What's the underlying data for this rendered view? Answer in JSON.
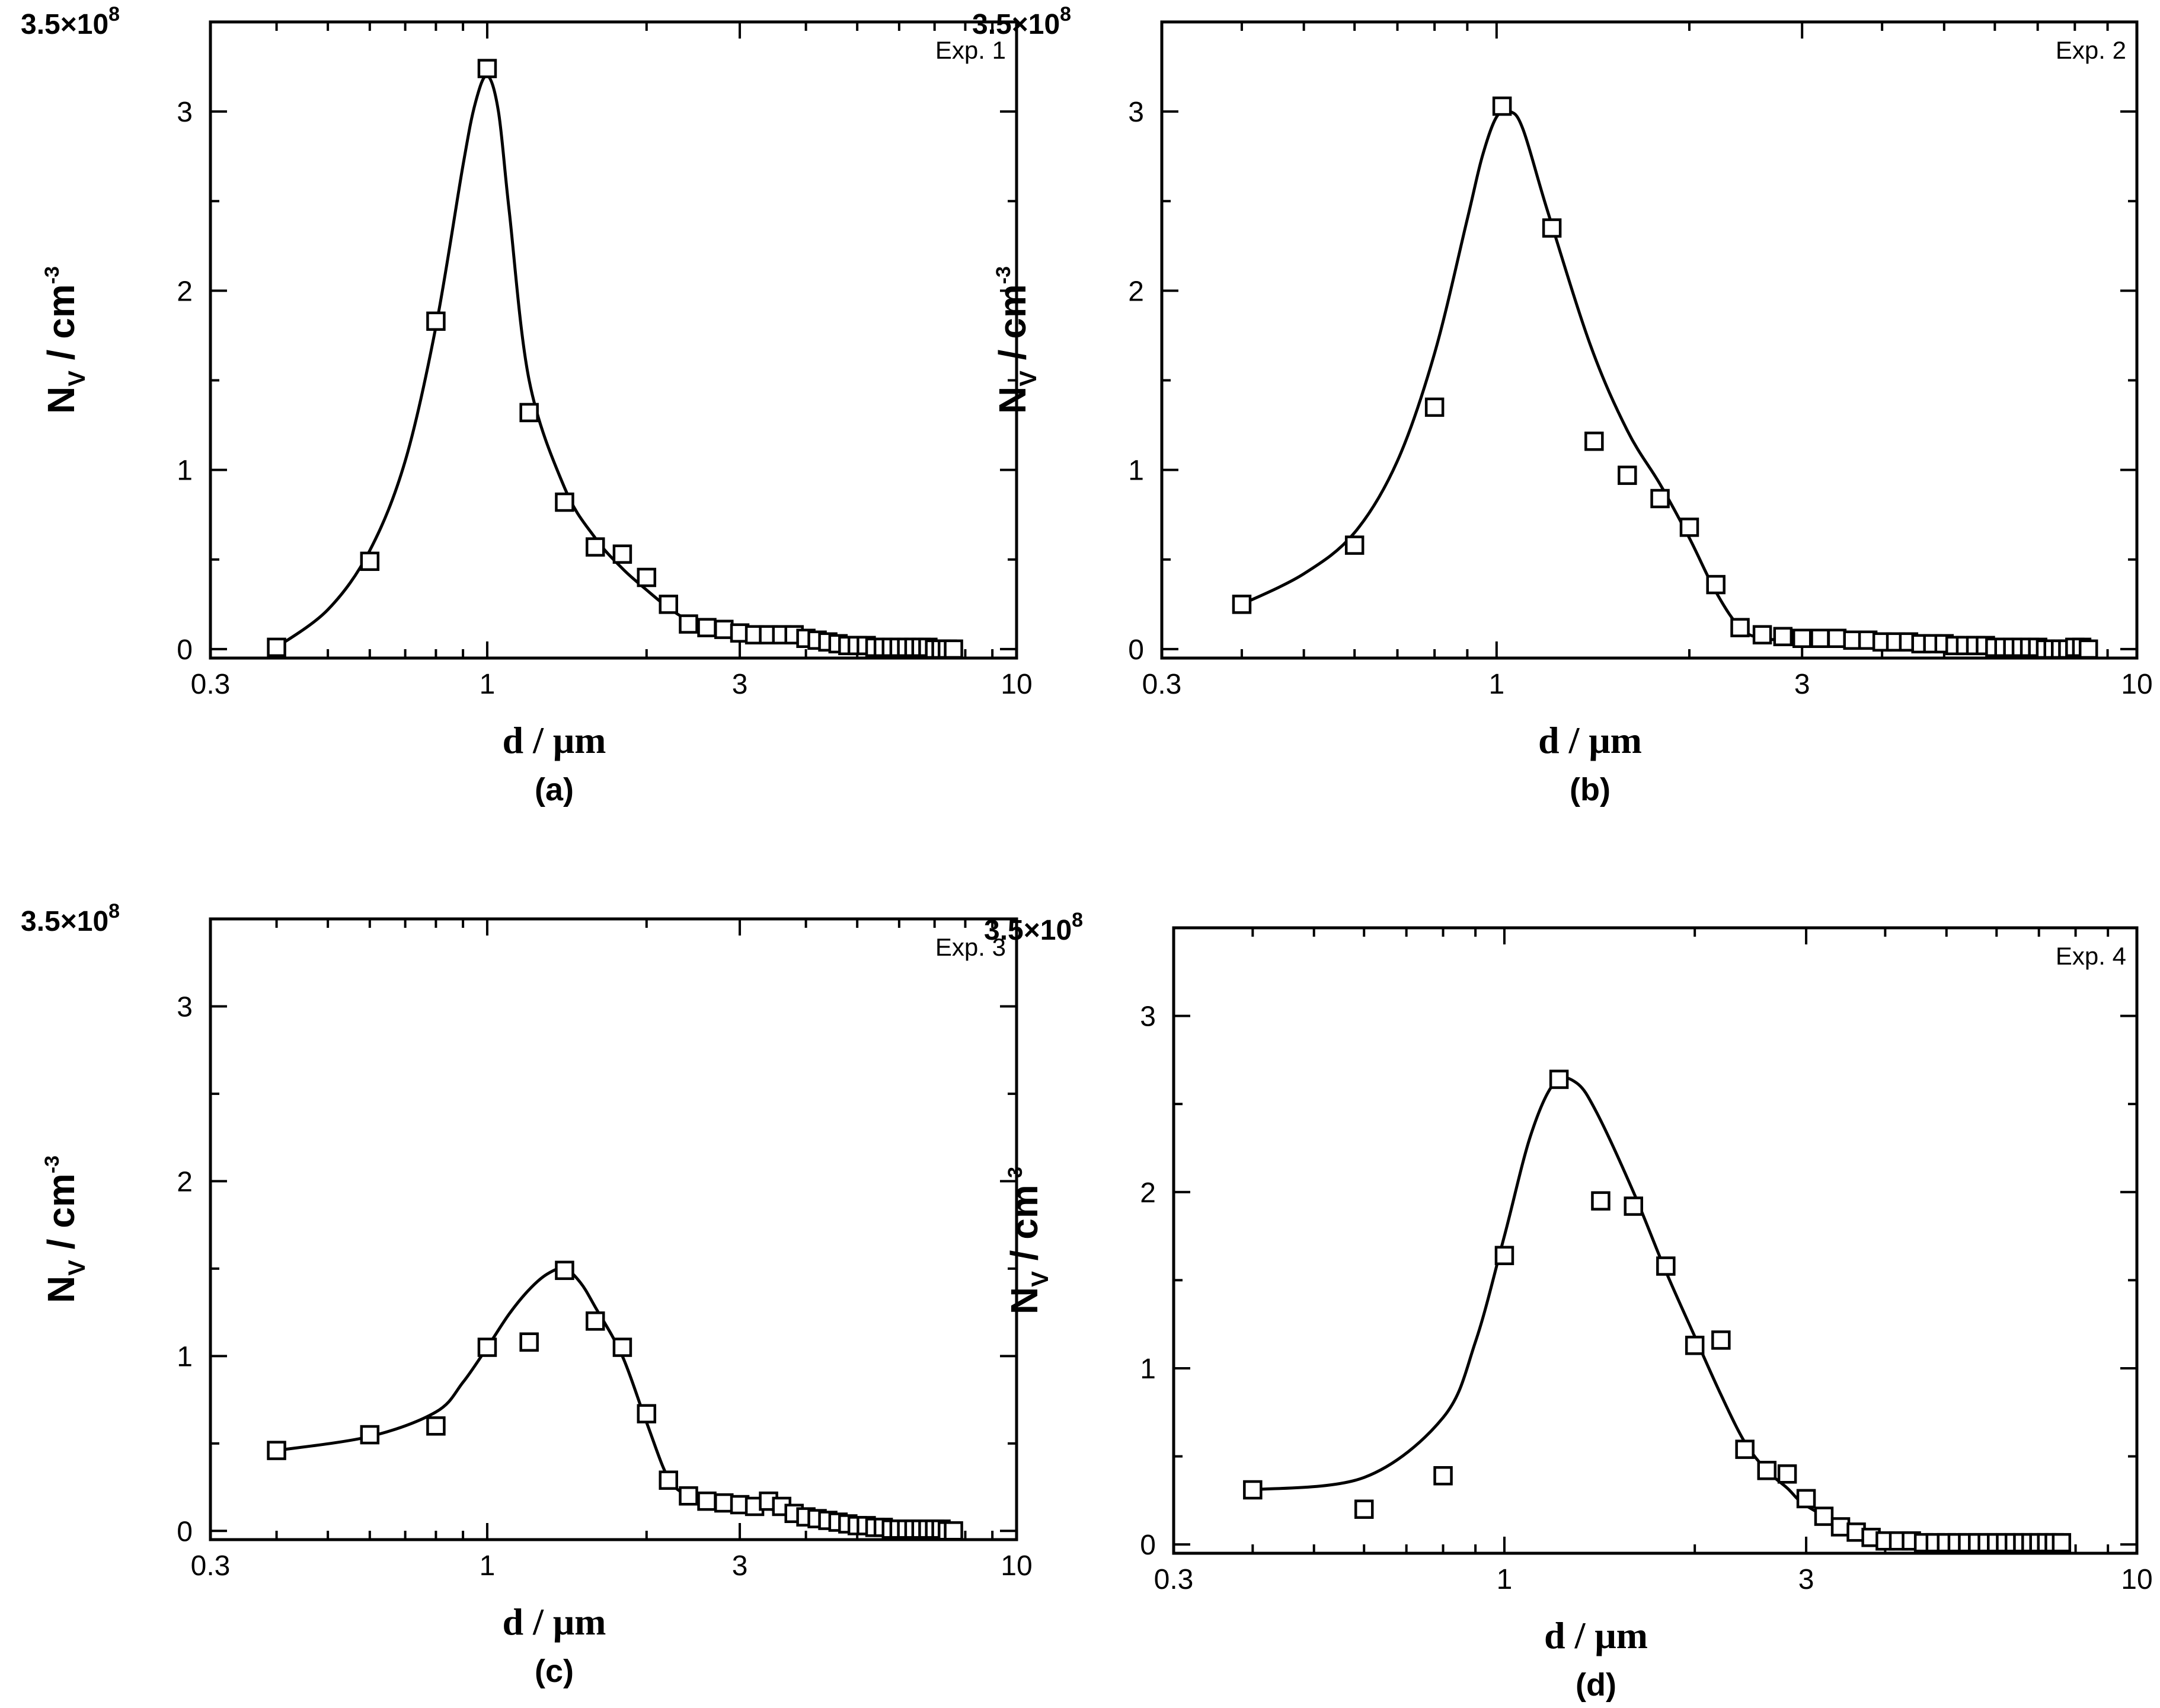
{
  "chart_data": [
    {
      "type": "scatter",
      "panel_label": "(a)",
      "annotation": "Exp. 1",
      "xlabel": "d / μm",
      "ylabel_main": "N",
      "ylabel_sub": "V",
      "ylabel_unit": " / cm",
      "ylabel_sup": "-3",
      "xscale": "log",
      "xlim": [
        0.3,
        10
      ],
      "ylim": [
        -0.05,
        3.5
      ],
      "ytop_label_base": "3.5×10",
      "ytop_label_exp": "8",
      "xticks": [
        0.3,
        1,
        3,
        10
      ],
      "xtick_labels": [
        "0.3",
        "1",
        "3",
        "10"
      ],
      "yticks": [
        0,
        1,
        2,
        3
      ],
      "ytick_labels": [
        "0",
        "1",
        "2",
        "3"
      ],
      "y_unit_note": "×10^8 cm^-3",
      "series": [
        {
          "name": "measured",
          "marker": "square",
          "x": [
            0.4,
            0.6,
            0.8,
            1.0,
            1.2,
            1.4,
            1.6,
            1.8,
            2.0,
            2.2,
            2.4,
            2.6,
            2.8,
            3.0,
            3.2,
            3.4,
            3.6,
            3.8,
            4.0,
            4.2,
            4.4,
            4.6,
            4.8,
            5.0,
            5.2,
            5.4,
            5.6,
            5.8,
            6.0,
            6.2,
            6.4,
            6.6,
            6.8,
            7.0,
            7.2,
            7.4,
            7.6
          ],
          "y": [
            0.01,
            0.49,
            1.83,
            3.24,
            1.32,
            0.82,
            0.57,
            0.53,
            0.4,
            0.25,
            0.14,
            0.12,
            0.11,
            0.09,
            0.08,
            0.08,
            0.08,
            0.08,
            0.06,
            0.05,
            0.04,
            0.03,
            0.02,
            0.02,
            0.02,
            0.01,
            0.01,
            0.01,
            0.01,
            0.01,
            0.01,
            0.01,
            0.01,
            0.0,
            0.0,
            0.0,
            0.0
          ]
        },
        {
          "name": "fit",
          "style": "line",
          "x": [
            0.4,
            0.5,
            0.6,
            0.7,
            0.8,
            0.9,
            0.95,
            1.0,
            1.05,
            1.1,
            1.2,
            1.4,
            1.6,
            1.8,
            2.0,
            2.2,
            2.4,
            2.6,
            3.0,
            3.5,
            4.0,
            4.5,
            5.0,
            6.0,
            7.6
          ],
          "y": [
            0.01,
            0.22,
            0.55,
            1.05,
            1.8,
            2.7,
            3.05,
            3.2,
            3.0,
            2.45,
            1.5,
            0.9,
            0.62,
            0.45,
            0.33,
            0.23,
            0.16,
            0.12,
            0.1,
            0.08,
            0.06,
            0.04,
            0.02,
            0.01,
            0.0
          ]
        }
      ]
    },
    {
      "type": "scatter",
      "panel_label": "(b)",
      "annotation": "Exp. 2",
      "xlabel": "d / μm",
      "ylabel_main": "N",
      "ylabel_sub": "V",
      "ylabel_unit": " / cm",
      "ylabel_sup": "-3",
      "xscale": "log",
      "xlim": [
        0.3,
        10
      ],
      "ylim": [
        -0.05,
        3.5
      ],
      "ytop_label_base": "3.5×10",
      "ytop_label_exp": "8",
      "xticks": [
        0.3,
        1,
        3,
        10
      ],
      "xtick_labels": [
        "0.3",
        "1",
        "3",
        "10"
      ],
      "yticks": [
        0,
        1,
        2,
        3
      ],
      "ytick_labels": [
        "0",
        "1",
        "2",
        "3"
      ],
      "series": [
        {
          "name": "measured",
          "marker": "square",
          "x": [
            0.4,
            0.6,
            0.8,
            1.02,
            1.22,
            1.42,
            1.6,
            1.8,
            2.0,
            2.2,
            2.4,
            2.6,
            2.8,
            3.0,
            3.2,
            3.4,
            3.6,
            3.8,
            4.0,
            4.2,
            4.4,
            4.6,
            4.8,
            5.0,
            5.2,
            5.4,
            5.6,
            5.8,
            6.0,
            6.2,
            6.4,
            6.6,
            6.8,
            7.0,
            7.2,
            7.4,
            7.6,
            7.8,
            8.0,
            8.2,
            8.4
          ],
          "y": [
            0.25,
            0.58,
            1.35,
            3.03,
            2.35,
            1.16,
            0.97,
            0.84,
            0.68,
            0.36,
            0.12,
            0.08,
            0.07,
            0.06,
            0.06,
            0.06,
            0.05,
            0.05,
            0.04,
            0.04,
            0.04,
            0.03,
            0.03,
            0.03,
            0.02,
            0.02,
            0.02,
            0.02,
            0.01,
            0.01,
            0.01,
            0.01,
            0.01,
            0.01,
            0.0,
            0.0,
            0.0,
            0.0,
            0.01,
            0.01,
            0.0
          ]
        },
        {
          "name": "fit",
          "style": "line",
          "x": [
            0.4,
            0.5,
            0.6,
            0.7,
            0.8,
            0.9,
            0.95,
            1.0,
            1.05,
            1.1,
            1.2,
            1.4,
            1.6,
            1.8,
            2.0,
            2.2,
            2.4,
            2.6,
            3.0,
            4.0,
            5.0,
            6.0,
            7.0,
            8.4
          ],
          "y": [
            0.25,
            0.42,
            0.65,
            1.05,
            1.65,
            2.4,
            2.75,
            2.97,
            3.0,
            2.9,
            2.45,
            1.7,
            1.22,
            0.92,
            0.62,
            0.32,
            0.12,
            0.06,
            0.05,
            0.03,
            0.02,
            0.01,
            0.0,
            0.0
          ]
        }
      ]
    },
    {
      "type": "scatter",
      "panel_label": "(c)",
      "annotation": "Exp. 3",
      "xlabel": "d / μm",
      "ylabel_main": "N",
      "ylabel_sub": "V",
      "ylabel_unit": " / cm",
      "ylabel_sup": "-3",
      "xscale": "log",
      "xlim": [
        0.3,
        10
      ],
      "ylim": [
        -0.05,
        3.5
      ],
      "ytop_label_base": "3.5×10",
      "ytop_label_exp": "8",
      "xticks": [
        0.3,
        1,
        3,
        10
      ],
      "xtick_labels": [
        "0.3",
        "1",
        "3",
        "10"
      ],
      "yticks": [
        0,
        1,
        2,
        3
      ],
      "ytick_labels": [
        "0",
        "1",
        "2",
        "3"
      ],
      "series": [
        {
          "name": "measured",
          "marker": "square",
          "x": [
            0.4,
            0.6,
            0.8,
            1.0,
            1.2,
            1.4,
            1.6,
            1.8,
            2.0,
            2.2,
            2.4,
            2.6,
            2.8,
            3.0,
            3.2,
            3.4,
            3.6,
            3.8,
            4.0,
            4.2,
            4.4,
            4.6,
            4.8,
            5.0,
            5.2,
            5.4,
            5.6,
            5.8,
            6.0,
            6.2,
            6.4,
            6.6,
            6.8,
            7.0,
            7.2,
            7.4,
            7.6
          ],
          "y": [
            0.46,
            0.55,
            0.6,
            1.05,
            1.08,
            1.49,
            1.2,
            1.05,
            0.67,
            0.29,
            0.2,
            0.17,
            0.16,
            0.15,
            0.14,
            0.17,
            0.14,
            0.1,
            0.08,
            0.07,
            0.06,
            0.05,
            0.04,
            0.03,
            0.03,
            0.02,
            0.02,
            0.01,
            0.01,
            0.01,
            0.01,
            0.01,
            0.01,
            0.01,
            0.01,
            0.0,
            0.0
          ]
        },
        {
          "name": "fit",
          "style": "line",
          "x": [
            0.4,
            0.6,
            0.8,
            0.9,
            1.0,
            1.1,
            1.2,
            1.3,
            1.4,
            1.5,
            1.6,
            1.8,
            2.0,
            2.2,
            2.4,
            2.6,
            3.0,
            3.5,
            4.0,
            4.5,
            5.0,
            6.0,
            7.6
          ],
          "y": [
            0.46,
            0.54,
            0.68,
            0.85,
            1.05,
            1.24,
            1.38,
            1.47,
            1.5,
            1.42,
            1.28,
            1.0,
            0.62,
            0.3,
            0.2,
            0.17,
            0.15,
            0.12,
            0.09,
            0.06,
            0.04,
            0.01,
            0.0
          ]
        }
      ]
    },
    {
      "type": "scatter",
      "panel_label": "(d)",
      "annotation": "Exp. 4",
      "xlabel": "d / μm",
      "ylabel_main": "N",
      "ylabel_sub": "V",
      "ylabel_unit": " / cm",
      "ylabel_sup": "-3",
      "xscale": "log",
      "xlim": [
        0.3,
        10
      ],
      "ylim": [
        -0.05,
        3.5
      ],
      "ytop_label_base": "3.5×10",
      "ytop_label_exp": "8",
      "xticks": [
        0.3,
        1,
        3,
        10
      ],
      "xtick_labels": [
        "0.3",
        "1",
        "3",
        "10"
      ],
      "yticks": [
        0,
        1,
        2,
        3
      ],
      "ytick_labels": [
        "0",
        "1",
        "2",
        "3"
      ],
      "series": [
        {
          "name": "measured",
          "marker": "square",
          "x": [
            0.4,
            0.6,
            0.8,
            1.0,
            1.22,
            1.42,
            1.6,
            1.8,
            2.0,
            2.2,
            2.4,
            2.6,
            2.8,
            3.0,
            3.2,
            3.4,
            3.6,
            3.8,
            4.0,
            4.2,
            4.4,
            4.6,
            4.8,
            5.0,
            5.2,
            5.4,
            5.6,
            5.8,
            6.0,
            6.2,
            6.4,
            6.6,
            6.8,
            7.0,
            7.2,
            7.4,
            7.6
          ],
          "y": [
            0.31,
            0.2,
            0.39,
            1.64,
            2.64,
            1.95,
            1.92,
            1.58,
            1.13,
            1.16,
            0.54,
            0.42,
            0.4,
            0.26,
            0.16,
            0.1,
            0.07,
            0.04,
            0.02,
            0.02,
            0.02,
            0.01,
            0.01,
            0.01,
            0.01,
            0.01,
            0.01,
            0.01,
            0.01,
            0.01,
            0.01,
            0.01,
            0.01,
            0.01,
            0.01,
            0.01,
            0.01
          ]
        },
        {
          "name": "fit",
          "style": "line",
          "x": [
            0.4,
            0.6,
            0.8,
            0.9,
            1.0,
            1.1,
            1.2,
            1.3,
            1.4,
            1.6,
            1.8,
            2.0,
            2.2,
            2.4,
            2.6,
            2.8,
            3.0,
            3.5,
            4.0,
            4.5,
            5.0,
            6.0,
            7.6
          ],
          "y": [
            0.31,
            0.38,
            0.72,
            1.15,
            1.75,
            2.32,
            2.62,
            2.62,
            2.45,
            2.0,
            1.55,
            1.18,
            0.85,
            0.58,
            0.42,
            0.32,
            0.22,
            0.1,
            0.04,
            0.02,
            0.01,
            0.01,
            0.01
          ]
        }
      ]
    }
  ]
}
